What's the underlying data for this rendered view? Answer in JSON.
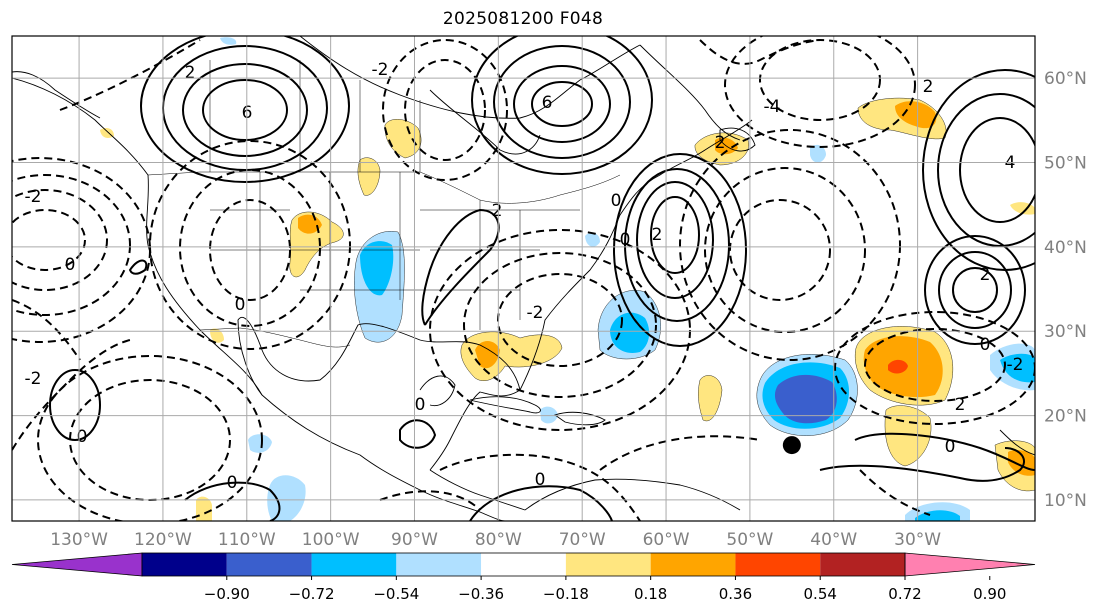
{
  "title": "2025081200 F048",
  "map": {
    "projection": "PlateCarree",
    "lon_range": [
      -138,
      -16
    ],
    "lat_range": [
      7.5,
      65
    ],
    "gridlines": true,
    "lon_labels": [
      "130°W",
      "120°W",
      "110°W",
      "100°W",
      "90°W",
      "80°W",
      "70°W",
      "60°W",
      "50°W",
      "40°W",
      "30°W"
    ],
    "lat_labels": [
      "10°N",
      "20°N",
      "30°N",
      "40°N",
      "50°N",
      "60°N"
    ],
    "marker": {
      "label": "storm-center-marker",
      "lon": -45,
      "lat": 16.5,
      "color": "#000000"
    }
  },
  "colorbar": {
    "orientation": "horizontal",
    "ticks": [
      "−0.90",
      "−0.72",
      "−0.54",
      "−0.36",
      "−0.18",
      "0.18",
      "0.36",
      "0.54",
      "0.72",
      "0.90"
    ],
    "colors": [
      "#9932cc",
      "#00008b",
      "#3a5fcd",
      "#00bfff",
      "#b0e0ff",
      "#ffffff",
      "#ffe680",
      "#ffa500",
      "#ff4500",
      "#b22222",
      "#ff80b0"
    ],
    "extend": "both"
  },
  "contour_labels": [
    "-2",
    "0",
    "2",
    "4",
    "6",
    "-4"
  ]
}
